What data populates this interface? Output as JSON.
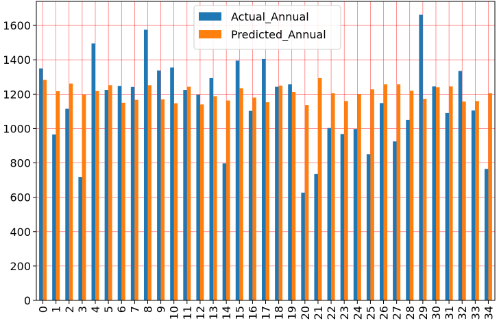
{
  "chart_data": {
    "type": "bar",
    "categories": [
      "0",
      "1",
      "2",
      "3",
      "4",
      "5",
      "6",
      "7",
      "8",
      "9",
      "10",
      "11",
      "12",
      "13",
      "14",
      "15",
      "16",
      "17",
      "18",
      "19",
      "20",
      "21",
      "22",
      "23",
      "24",
      "25",
      "26",
      "27",
      "28",
      "29",
      "30",
      "31",
      "32",
      "33",
      "34"
    ],
    "series": [
      {
        "name": "Actual_Annual",
        "color": "#1f77b4",
        "values": [
          1350,
          965,
          1115,
          718,
          1495,
          1225,
          1248,
          1242,
          1575,
          1338,
          1355,
          1225,
          1197,
          1293,
          797,
          1395,
          1103,
          1405,
          1243,
          1257,
          627,
          735,
          1003,
          968,
          997,
          850,
          1148,
          925,
          1050,
          1662,
          1245,
          1090,
          1335,
          1105,
          765
        ]
      },
      {
        "name": "Predicted_Annual",
        "color": "#ff7f0e",
        "values": [
          1283,
          1217,
          1262,
          1197,
          1218,
          1252,
          1150,
          1167,
          1252,
          1170,
          1147,
          1243,
          1140,
          1188,
          1163,
          1235,
          1180,
          1153,
          1250,
          1213,
          1137,
          1293,
          1205,
          1160,
          1200,
          1228,
          1257,
          1257,
          1220,
          1173,
          1240,
          1245,
          1157,
          1160,
          1205
        ]
      }
    ],
    "ylim": [
      0,
      1740
    ],
    "yticks": [
      0,
      200,
      400,
      600,
      800,
      1000,
      1200,
      1400,
      1600
    ],
    "grid": true,
    "grid_color": "#ff0000",
    "legend_position": "top-center",
    "xlabel": "",
    "ylabel": ""
  }
}
